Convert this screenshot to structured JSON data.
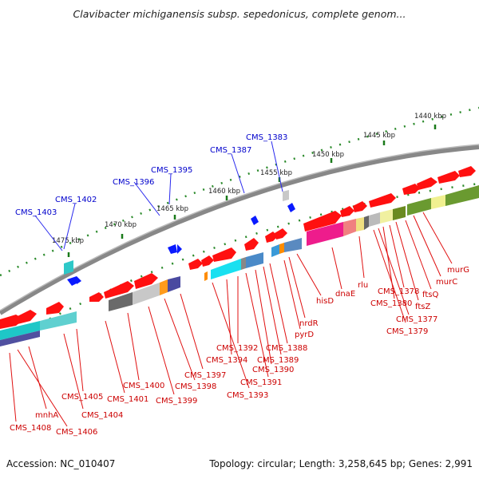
{
  "title": "Clavibacter michiganensis subsp. sepedonicus, complete genom...",
  "footer": {
    "accession": "Accession: NC_010407",
    "summary": "Topology: circular; Length: 3,258,645 bp; Genes: 2,991"
  },
  "scale_ticks": [
    "1440 kbp",
    "1445 kbp",
    "1450 kbp",
    "1455 kbp",
    "1460 kbp",
    "1465 kbp",
    "1470 kbp",
    "1475 kbp"
  ],
  "blue_labels": [
    "CMS_1383",
    "CMS_1387",
    "CMS_1395",
    "CMS_1396",
    "CMS_1402",
    "CMS_1403"
  ],
  "red_labels": [
    "murG",
    "murC",
    "ftsQ",
    "ftsZ",
    "CMS_1378",
    "CMS_1380",
    "CMS_1377",
    "CMS_1379",
    "rlu",
    "dnaE",
    "hisD",
    "nrdR",
    "pyrD",
    "CMS_1388",
    "CMS_1389",
    "CMS_1390",
    "CMS_1391",
    "CMS_1392",
    "CMS_1394",
    "CMS_1393",
    "CMS_1397",
    "CMS_1398",
    "CMS_1399",
    "CMS_1400",
    "CMS_1401",
    "CMS_1405",
    "CMS_1404",
    "mnhA",
    "CMS_1406",
    "CMS_1408"
  ],
  "colors": {
    "gene_red": "#ff0000",
    "label_blue": "#0000cc",
    "label_red": "#cc0000",
    "backbone": "#888888",
    "tick_green": "#1a7a1a"
  }
}
